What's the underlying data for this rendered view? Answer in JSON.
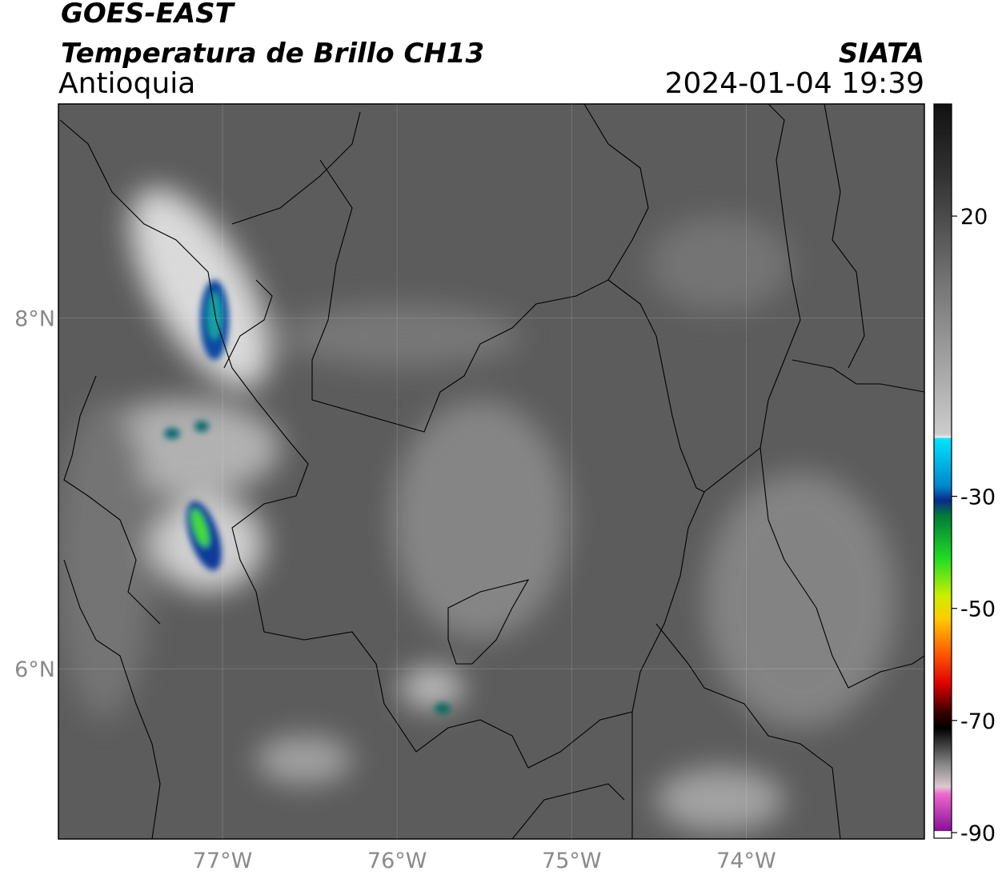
{
  "header": {
    "title": "GOES-EAST",
    "subtitle": "Temperatura de Brillo CH13",
    "region": "Antioquia",
    "source": "SIATA",
    "datetime": "2024-01-04 19:39"
  },
  "map": {
    "xlim": [
      -77.94,
      -72.98
    ],
    "ylim": [
      5.03,
      9.22
    ],
    "xticks": [
      {
        "value": -77,
        "label": "77°W"
      },
      {
        "value": -76,
        "label": "76°W"
      },
      {
        "value": -75,
        "label": "75°W"
      },
      {
        "value": -74,
        "label": "74°W"
      }
    ],
    "yticks": [
      {
        "value": 8,
        "label": "8°N"
      },
      {
        "value": 6,
        "label": "6°N"
      }
    ]
  },
  "colorbar": {
    "range": [
      -91,
      40
    ],
    "ticks": [
      20,
      -30,
      -50,
      -70,
      -90
    ]
  }
}
